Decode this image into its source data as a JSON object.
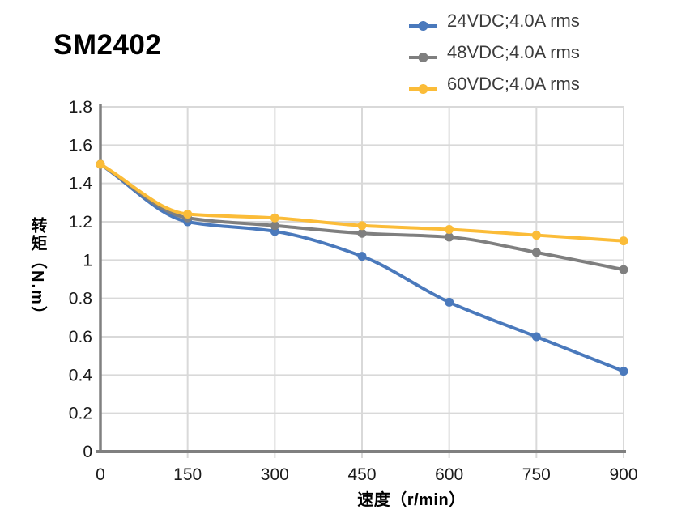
{
  "chart_data": {
    "type": "line",
    "title": "SM2402",
    "xlabel": "速度（r/min）",
    "ylabel": "转矩（N.m）",
    "x": [
      0,
      150,
      300,
      450,
      600,
      750,
      900
    ],
    "xlim": [
      0,
      900
    ],
    "ylim": [
      0,
      1.8
    ],
    "xticks": [
      "0",
      "150",
      "300",
      "450",
      "600",
      "750",
      "900"
    ],
    "yticks": [
      "0",
      "0.2",
      "0.4",
      "0.6",
      "0.8",
      "1",
      "1.2",
      "1.4",
      "1.6",
      "1.8"
    ],
    "grid": true,
    "legend_position": "top-right",
    "series": [
      {
        "name": "24VDC;4.0A rms",
        "color": "#4A79BC",
        "values": [
          1.5,
          1.2,
          1.15,
          1.02,
          0.78,
          0.6,
          0.42
        ]
      },
      {
        "name": "48VDC;4.0A rms",
        "color": "#7F7F7F",
        "values": [
          1.5,
          1.22,
          1.18,
          1.14,
          1.12,
          1.04,
          0.95
        ]
      },
      {
        "name": "60VDC;4.0A rms",
        "color": "#FBBC38",
        "values": [
          1.5,
          1.24,
          1.22,
          1.18,
          1.16,
          1.13,
          1.1
        ]
      }
    ],
    "colors": {
      "grid": "#D9D9D9",
      "axis": "#808080",
      "tick_label": "#1A1A1A",
      "legend_text": "#3C3C3C",
      "title": "#000000"
    }
  }
}
